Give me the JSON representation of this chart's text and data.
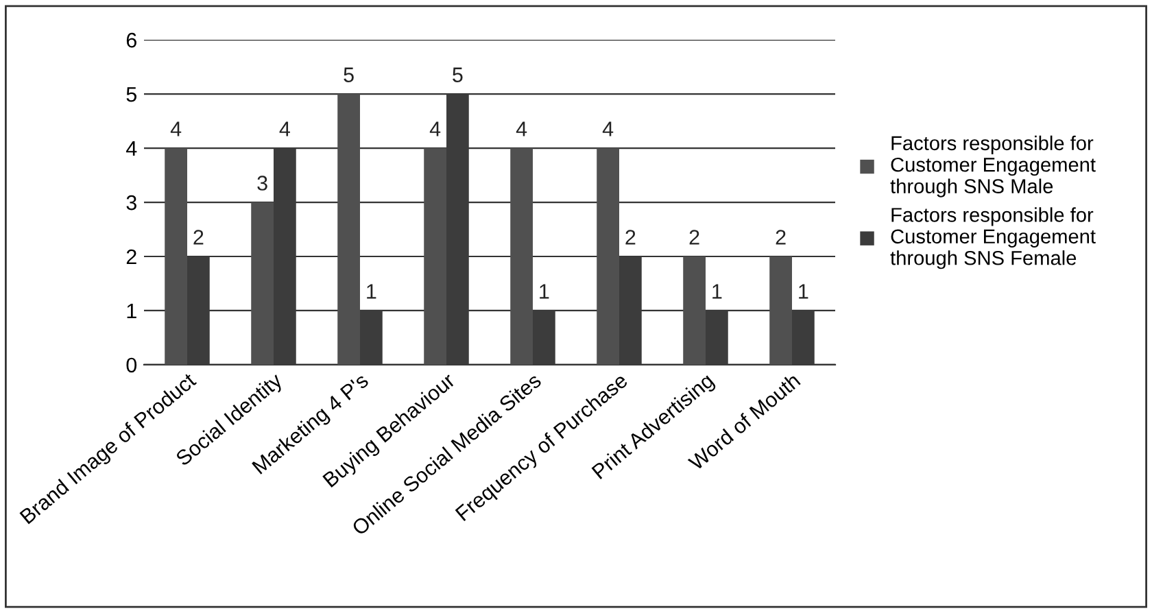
{
  "chart_data": {
    "type": "bar",
    "categories": [
      "Brand Image of Product",
      "Social Identity",
      "Marketing 4 P's",
      "Buying Behaviour",
      "Online Social Media Sites",
      "Frequency of Purchase",
      "Print Advertising",
      "Word of Mouth"
    ],
    "series": [
      {
        "name": "Factors responsible for Customer Engagement through SNS Male",
        "color": "#505050",
        "values": [
          4,
          3,
          5,
          4,
          4,
          4,
          2,
          2
        ]
      },
      {
        "name": "Factors responsible for Customer Engagement through SNS Female",
        "color": "#3c3c3c",
        "values": [
          2,
          4,
          1,
          5,
          1,
          2,
          1,
          1
        ]
      }
    ],
    "ylim": [
      0,
      6
    ],
    "yticks": [
      0,
      1,
      2,
      3,
      4,
      5,
      6
    ],
    "grid": "y",
    "legend": "right",
    "data_labels": true
  }
}
